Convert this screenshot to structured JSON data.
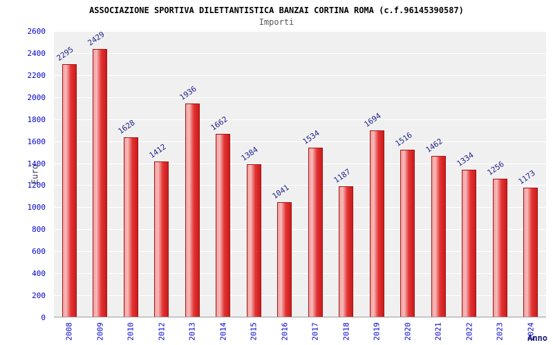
{
  "chart_data": {
    "type": "bar",
    "title": "ASSOCIAZIONE SPORTIVA DILETTANTISTICA BANZAI CORTINA ROMA (c.f.96145390587)",
    "subtitle": "Importi",
    "xlabel": "Anno",
    "ylabel": "Euro",
    "categories": [
      "2008",
      "2009",
      "2010",
      "2012",
      "2013",
      "2014",
      "2015",
      "2016",
      "2017",
      "2018",
      "2019",
      "2020",
      "2021",
      "2022",
      "2023",
      "2024"
    ],
    "values": [
      2295,
      2429,
      1628,
      1412,
      1936,
      1662,
      1384,
      1041,
      1534,
      1187,
      1694,
      1516,
      1462,
      1334,
      1256,
      1173
    ],
    "ylim": [
      0,
      2600
    ],
    "ytick_step": 200,
    "grid": true,
    "legend": "none",
    "colors": {
      "bar_light": "#f0a0a0",
      "bar_mid": "#f6baba",
      "bar_main": "#e43333",
      "bar_dark": "#c81c1c",
      "bar_border": "#aa1111",
      "axis_label": "#0000cc",
      "value_label": "#1f1f8c",
      "plot_bg": "#f0f0f0",
      "grid_line": "#ffffff",
      "title_color": "#000000",
      "subtitle_color": "#555555"
    }
  }
}
